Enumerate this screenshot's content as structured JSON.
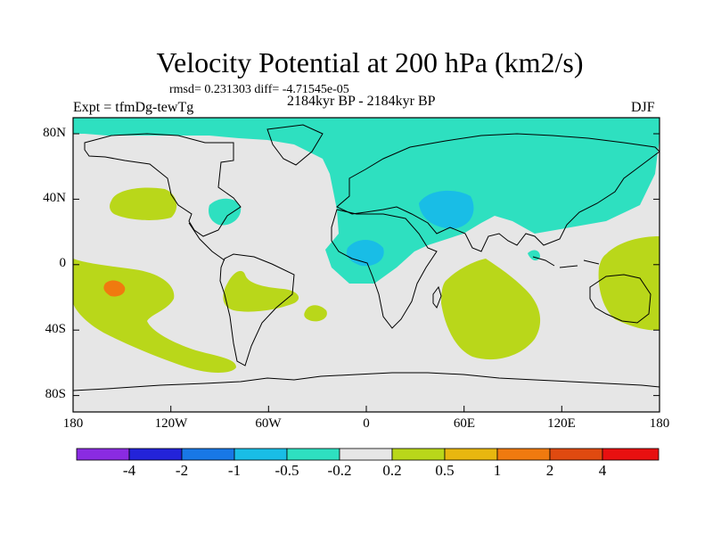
{
  "header": {
    "title": "Velocity Potential at 200 hPa (km2/s)",
    "stats": "rmsd= 0.231303 diff= -4.71545e-05",
    "expt": "Expt = tfmDg-tewTg",
    "subtitle": "2184kyr BP - 2184kyr BP",
    "season": "DJF"
  },
  "map": {
    "background_color": "#e6e6e6",
    "lat_labels": [
      "80N",
      "40N",
      "0",
      "40S",
      "80S"
    ],
    "lon_labels": [
      "180",
      "120W",
      "60W",
      "0",
      "60E",
      "120E",
      "180"
    ],
    "regions": [
      {
        "name": "arctic-eurasia-negative-region",
        "level": "-0.5 to -0.2",
        "color": "#2ee0c0"
      },
      {
        "name": "middle-east-negative-core",
        "level": "-1 to -0.5",
        "color": "#19bde6"
      },
      {
        "name": "north-atlantic-negative-region",
        "level": "-0.5 to -0.2",
        "color": "#2ee0c0"
      },
      {
        "name": "west-africa-negative-core",
        "level": "-1 to -0.5",
        "color": "#19bde6"
      },
      {
        "name": "south-pacific-positive-region",
        "level": "0.2 to 0.5",
        "color": "#b9d71a"
      },
      {
        "name": "central-pacific-positive-core",
        "level": "1 to 2",
        "color": "#f07a0f"
      },
      {
        "name": "indian-ocean-positive-region",
        "level": "0.2 to 0.5",
        "color": "#b9d71a"
      },
      {
        "name": "australia-positive-region",
        "level": "0.2 to 0.5",
        "color": "#b9d71a"
      }
    ]
  },
  "colorbar": {
    "colors": [
      "#8a2be2",
      "#2323d9",
      "#1878e6",
      "#19bde6",
      "#2ee0c0",
      "#e6e6e6",
      "#b9d71a",
      "#e8b70f",
      "#f07a0f",
      "#e04a10",
      "#e81010"
    ],
    "labels": [
      "-4",
      "-2",
      "-1",
      "-0.5",
      "-0.2",
      "0.2",
      "0.5",
      "1",
      "2",
      "4"
    ]
  }
}
